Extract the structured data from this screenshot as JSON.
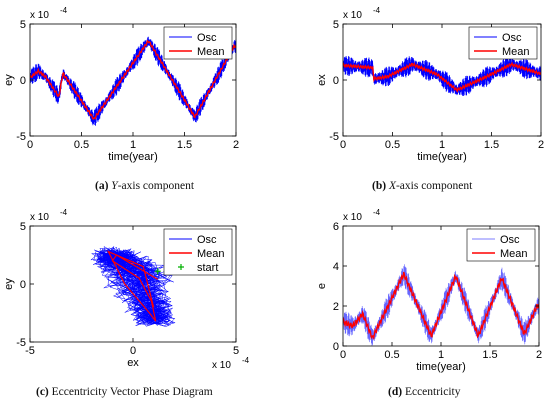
{
  "colors": {
    "osc": "#0000ff",
    "mean": "#ff0000",
    "start": "#00b000",
    "axis": "#000000"
  },
  "captions": [
    {
      "tag": "(a)",
      "axis": "Y",
      "rest": "-axis component"
    },
    {
      "tag": "(b)",
      "axis": "X",
      "rest": "-axis component"
    },
    {
      "tag": "(c)",
      "axis": "",
      "rest": "Eccentricity Vector Phase Diagram"
    },
    {
      "tag": "(d)",
      "axis": "",
      "rest": "Eccentricity"
    }
  ],
  "chart_data": [
    {
      "type": "line",
      "ylabel": "ey",
      "xlabel": "time(year)",
      "exponent_label": "x 10",
      "exponent": "-4",
      "xlim": [
        0,
        2
      ],
      "ylim": [
        -5,
        5
      ],
      "xticks": [
        "0",
        "0.5",
        "1",
        "1.5",
        "2"
      ],
      "yticks": [
        "5",
        "0",
        "-5"
      ],
      "legend": [
        "Osc",
        "Mean"
      ],
      "legend_position": "top-right",
      "series": [
        {
          "name": "Mean",
          "x": [
            0,
            0.08,
            0.15,
            0.28,
            0.32,
            0.62,
            1.15,
            1.6,
            1.98
          ],
          "y": [
            0.2,
            0.8,
            0.3,
            -1.5,
            0.6,
            -3.5,
            3.5,
            -3.3,
            3.0
          ]
        }
      ],
      "osc_amplitude": 0.8
    },
    {
      "type": "line",
      "ylabel": "ex",
      "xlabel": "time(year)",
      "exponent_label": "x 10",
      "exponent": "-4",
      "xlim": [
        0,
        2
      ],
      "ylim": [
        -5,
        5
      ],
      "xticks": [
        "0",
        "0.5",
        "1",
        "1.5",
        "2"
      ],
      "yticks": [
        "5",
        "0",
        "-5"
      ],
      "legend": [
        "Osc",
        "Mean"
      ],
      "legend_position": "top-right",
      "series": [
        {
          "name": "Mean",
          "x": [
            0,
            0.3,
            0.31,
            0.45,
            0.7,
            0.95,
            1.15,
            1.45,
            1.7,
            1.98
          ],
          "y": [
            1.3,
            1.1,
            0.1,
            0.3,
            1.4,
            0.5,
            -0.9,
            0.3,
            1.4,
            0.6
          ]
        }
      ],
      "osc_amplitude": 0.9
    },
    {
      "type": "scatter",
      "ylabel": "ey",
      "xlabel": "ex",
      "exponent_label": "x 10",
      "exponent": "-4",
      "xlim": [
        -5,
        5
      ],
      "ylim": [
        -5,
        5
      ],
      "xticks": [
        "-5",
        "0",
        "5"
      ],
      "yticks": [
        "5",
        "0",
        "-5"
      ],
      "legend": [
        "Osc",
        "Mean",
        "start"
      ],
      "legend_position": "top-right",
      "series": [
        {
          "name": "Mean",
          "x": [
            1.2,
            -0.8,
            -1.0,
            0.3,
            0.9,
            1.1,
            0.8,
            -0.4,
            -1.2,
            0.5,
            1.0
          ],
          "y": [
            0.4,
            2.5,
            2.0,
            0.5,
            -1.5,
            -3.2,
            -2.5,
            0.0,
            2.8,
            1.5,
            -2.0
          ]
        },
        {
          "name": "start",
          "x": [
            1.2
          ],
          "y": [
            1.1
          ]
        }
      ],
      "osc_amplitude": 1.0
    },
    {
      "type": "line",
      "ylabel": "e",
      "xlabel": "time(year)",
      "exponent_label": "x 10",
      "exponent": "-4",
      "xlim": [
        0,
        2
      ],
      "ylim": [
        0,
        6
      ],
      "xticks": [
        "0",
        "0.5",
        "1",
        "1.5",
        "2"
      ],
      "yticks": [
        "6",
        "4",
        "2",
        "0"
      ],
      "legend": [
        "Osc",
        "Mean"
      ],
      "legend_position": "top-right",
      "series": [
        {
          "name": "Mean",
          "x": [
            0,
            0.1,
            0.2,
            0.3,
            0.38,
            0.62,
            0.9,
            1.15,
            1.38,
            1.62,
            1.85,
            1.98
          ],
          "y": [
            1.2,
            1.0,
            1.6,
            0.4,
            1.2,
            3.6,
            0.5,
            3.5,
            0.5,
            3.4,
            0.6,
            2.0
          ]
        }
      ],
      "osc_amplitude": 0.6
    }
  ]
}
